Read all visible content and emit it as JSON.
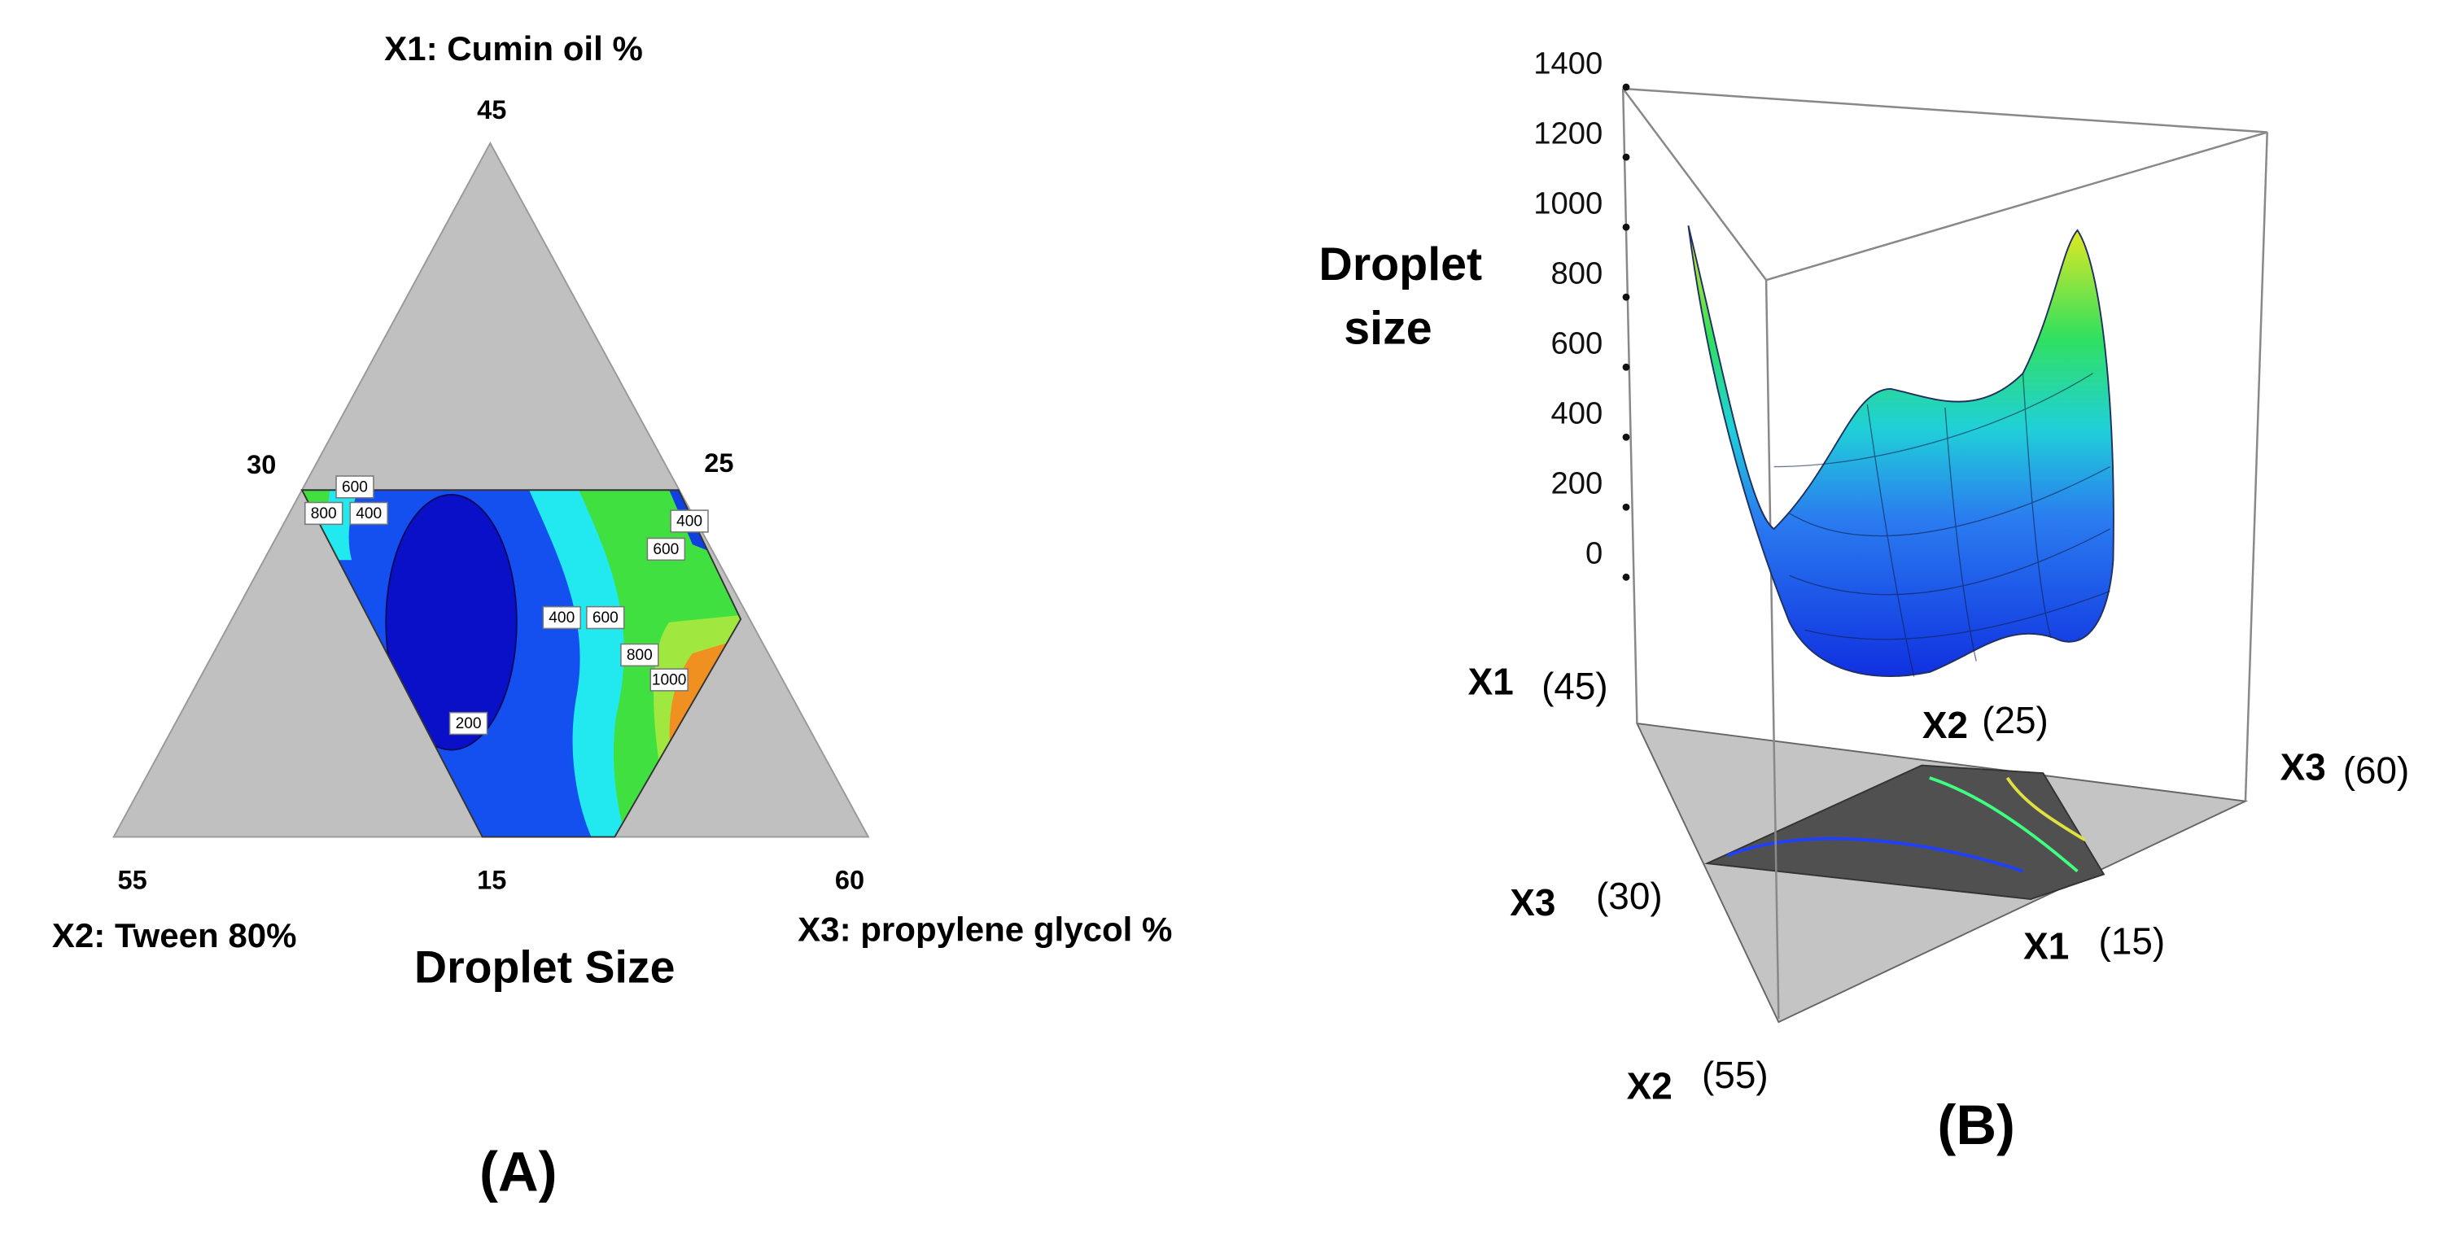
{
  "chart_data": [
    {
      "type": "ternary_contour",
      "title": "Droplet Size",
      "panel_label": "(A)",
      "axes": [
        {
          "label": "X1: Cumin oil %",
          "ticks": [
            45,
            30
          ]
        },
        {
          "label": "X2: Tween 80%",
          "ticks": [
            55,
            15
          ]
        },
        {
          "label": "X3: propylene glycol %",
          "ticks": [
            60,
            25
          ]
        }
      ],
      "contour_labels": [
        600,
        800,
        400,
        400,
        600,
        400,
        600,
        800,
        1000,
        200
      ]
    },
    {
      "type": "surface_3d",
      "panel_label": "(B)",
      "zlabel": [
        "Droplet",
        "size"
      ],
      "zlim": [
        0,
        1400
      ],
      "zticks": [
        0,
        200,
        400,
        600,
        800,
        1000,
        1200,
        1400
      ],
      "corners": [
        {
          "axis": "X1",
          "label": "(45)"
        },
        {
          "axis": "X2",
          "label": "(25)"
        },
        {
          "axis": "X3",
          "label": "(60)"
        },
        {
          "axis": "X3",
          "label": "(30)"
        },
        {
          "axis": "X1",
          "label": "(15)"
        },
        {
          "axis": "X2",
          "label": "(55)"
        }
      ]
    }
  ]
}
